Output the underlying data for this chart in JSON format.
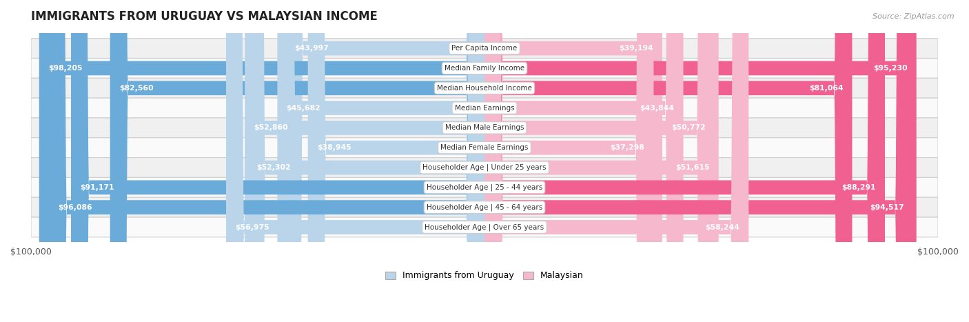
{
  "title": "IMMIGRANTS FROM URUGUAY VS MALAYSIAN INCOME",
  "source": "Source: ZipAtlas.com",
  "categories": [
    "Per Capita Income",
    "Median Family Income",
    "Median Household Income",
    "Median Earnings",
    "Median Male Earnings",
    "Median Female Earnings",
    "Householder Age | Under 25 years",
    "Householder Age | 25 - 44 years",
    "Householder Age | 45 - 64 years",
    "Householder Age | Over 65 years"
  ],
  "uruguay_values": [
    43997,
    98205,
    82560,
    45682,
    52860,
    38945,
    52302,
    91171,
    96086,
    56975
  ],
  "malaysian_values": [
    39194,
    95230,
    81064,
    43844,
    50772,
    37298,
    51615,
    88291,
    94517,
    58244
  ],
  "uruguay_labels": [
    "$43,997",
    "$98,205",
    "$82,560",
    "$45,682",
    "$52,860",
    "$38,945",
    "$52,302",
    "$91,171",
    "$96,086",
    "$56,975"
  ],
  "malaysian_labels": [
    "$39,194",
    "$95,230",
    "$81,064",
    "$43,844",
    "$50,772",
    "$37,298",
    "$51,615",
    "$88,291",
    "$94,517",
    "$58,244"
  ],
  "max_value": 100000,
  "uruguay_color_light": "#bad4ea",
  "uruguay_color_dark": "#6aabda",
  "malaysian_color_light": "#f5b8cc",
  "malaysian_color_dark": "#f06090",
  "row_bg_even": "#f0f0f0",
  "row_bg_odd": "#fafafa",
  "label_inside_color": "#ffffff",
  "label_outside_color": "#555555",
  "legend_uruguay": "Immigrants from Uruguay",
  "legend_malaysian": "Malaysian",
  "inside_threshold": 25000
}
